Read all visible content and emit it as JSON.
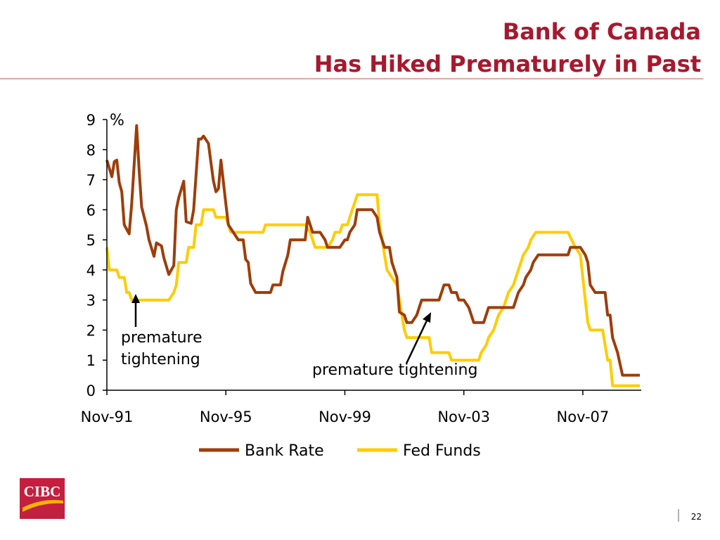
{
  "title_lines": [
    "Bank of Canada",
    "Has Hiked Prematurely in Past"
  ],
  "logo": "CIBC",
  "page_number": "22",
  "chart_data": {
    "type": "line",
    "y_label": "%",
    "xlim": [
      "1991-11",
      "2009-10"
    ],
    "xticks": [
      {
        "value": "1991-11",
        "label": "Nov-91"
      },
      {
        "value": "1995-11",
        "label": "Nov-95"
      },
      {
        "value": "1999-11",
        "label": "Nov-99"
      },
      {
        "value": "2003-11",
        "label": "Nov-03"
      },
      {
        "value": "2007-11",
        "label": "Nov-07"
      }
    ],
    "ylim": [
      0,
      9
    ],
    "yticks": [
      0,
      1,
      2,
      3,
      4,
      5,
      6,
      7,
      8,
      9
    ],
    "legend": "bottom",
    "annotations": [
      {
        "lines": [
          "premature",
          "tightening"
        ]
      },
      {
        "lines": [
          "premature tightening"
        ]
      }
    ],
    "series": [
      {
        "name": "Bank Rate",
        "color": "#9e3d0a",
        "x": [
          "1991-11",
          "1992-01",
          "1992-02",
          "1992-03",
          "1992-04",
          "1992-05",
          "1992-06",
          "1992-08",
          "1992-09",
          "1992-11",
          "1992-12",
          "1993-01",
          "1993-03",
          "1993-04",
          "1993-06",
          "1993-07",
          "1993-09",
          "1993-10",
          "1993-12",
          "1994-02",
          "1994-03",
          "1994-04",
          "1994-06",
          "1994-07",
          "1994-09",
          "1994-10",
          "1994-12",
          "1995-01",
          "1995-02",
          "1995-04",
          "1995-05",
          "1995-06",
          "1995-07",
          "1995-08",
          "1995-09",
          "1995-11",
          "1995-12",
          "1996-02",
          "1996-04",
          "1996-06",
          "1996-07",
          "1996-08",
          "1996-09",
          "1996-11",
          "1997-05",
          "1997-06",
          "1997-09",
          "1997-10",
          "1997-12",
          "1998-01",
          "1998-07",
          "1998-08",
          "1998-10",
          "1999-01",
          "1999-03",
          "1999-04",
          "1999-09",
          "1999-11",
          "1999-12",
          "2000-01",
          "2000-03",
          "2000-04",
          "2000-10",
          "2000-12",
          "2001-01",
          "2001-03",
          "2001-05",
          "2001-06",
          "2001-08",
          "2001-09",
          "2001-11",
          "2001-12",
          "2002-02",
          "2002-04",
          "2002-05",
          "2002-06",
          "2003-01",
          "2003-03",
          "2003-05",
          "2003-06",
          "2003-08",
          "2003-09",
          "2003-11",
          "2004-01",
          "2004-02",
          "2004-03",
          "2004-07",
          "2004-09",
          "2005-07",
          "2005-09",
          "2005-11",
          "2005-12",
          "2006-02",
          "2006-03",
          "2006-05",
          "2007-05",
          "2007-06",
          "2007-10",
          "2007-12",
          "2008-01",
          "2008-02",
          "2008-04",
          "2008-08",
          "2008-09",
          "2008-10",
          "2008-11",
          "2009-01",
          "2009-03",
          "2009-10"
        ],
        "values": [
          7.65,
          7.1,
          7.6,
          7.65,
          6.9,
          6.6,
          5.5,
          5.2,
          6.2,
          8.8,
          7.35,
          6.1,
          5.45,
          5.0,
          4.45,
          4.9,
          4.8,
          4.4,
          3.85,
          4.15,
          6.0,
          6.4,
          6.95,
          5.6,
          5.55,
          6.0,
          8.35,
          8.35,
          8.45,
          8.2,
          7.55,
          6.95,
          6.6,
          6.7,
          7.65,
          6.2,
          5.5,
          5.25,
          5.0,
          5.0,
          4.35,
          4.25,
          3.55,
          3.25,
          3.25,
          3.5,
          3.5,
          3.95,
          4.5,
          5.0,
          5.0,
          5.75,
          5.25,
          5.25,
          5.0,
          4.75,
          4.75,
          5.0,
          5.0,
          5.25,
          5.5,
          6.0,
          6.0,
          5.75,
          5.25,
          4.75,
          4.75,
          4.25,
          3.75,
          2.6,
          2.5,
          2.25,
          2.25,
          2.5,
          2.75,
          3.0,
          3.0,
          3.5,
          3.5,
          3.25,
          3.25,
          3.0,
          3.0,
          2.75,
          2.5,
          2.25,
          2.25,
          2.75,
          2.75,
          3.25,
          3.5,
          3.75,
          4.0,
          4.25,
          4.5,
          4.5,
          4.75,
          4.75,
          4.5,
          4.25,
          3.5,
          3.25,
          3.25,
          2.5,
          2.5,
          1.75,
          1.25,
          0.5,
          0.5
        ]
      },
      {
        "name": "Fed Funds",
        "color": "#ffcc00",
        "x": [
          "1991-11",
          "1991-12",
          "1992-03",
          "1992-04",
          "1992-06",
          "1992-07",
          "1992-08",
          "1992-09",
          "1993-12",
          "1994-02",
          "1994-03",
          "1994-04",
          "1994-07",
          "1994-08",
          "1994-10",
          "1994-11",
          "1995-01",
          "1995-02",
          "1995-06",
          "1995-07",
          "1995-11",
          "1995-12",
          "1996-01",
          "1997-02",
          "1997-03",
          "1998-07",
          "1998-09",
          "1998-10",
          "1998-11",
          "1999-04",
          "1999-06",
          "1999-07",
          "1999-09",
          "1999-10",
          "1999-12",
          "2000-01",
          "2000-02",
          "2000-03",
          "2000-04",
          "2000-12",
          "2001-01",
          "2001-02",
          "2001-03",
          "2001-04",
          "2001-06",
          "2001-08",
          "2001-09",
          "2001-10",
          "2001-11",
          "2001-12",
          "2002-09",
          "2002-10",
          "2003-05",
          "2003-06",
          "2004-05",
          "2004-06",
          "2004-08",
          "2004-09",
          "2004-11",
          "2004-12",
          "2005-01",
          "2005-03",
          "2005-04",
          "2005-05",
          "2005-07",
          "2005-08",
          "2005-09",
          "2005-10",
          "2005-11",
          "2006-01",
          "2006-02",
          "2006-04",
          "2007-05",
          "2007-08",
          "2007-10",
          "2007-12",
          "2008-01",
          "2008-02",
          "2008-07",
          "2008-08",
          "2008-09",
          "2008-10",
          "2008-11",
          "2009-10"
        ],
        "values": [
          4.75,
          4.0,
          4.0,
          3.75,
          3.75,
          3.25,
          3.25,
          3.0,
          3.0,
          3.25,
          3.5,
          4.25,
          4.25,
          4.75,
          4.75,
          5.5,
          5.5,
          6.0,
          6.0,
          5.75,
          5.75,
          5.5,
          5.25,
          5.25,
          5.5,
          5.5,
          5.25,
          5.0,
          4.75,
          4.75,
          5.0,
          5.25,
          5.25,
          5.5,
          5.5,
          5.75,
          6.0,
          6.25,
          6.5,
          6.5,
          5.5,
          5.0,
          4.5,
          4.0,
          3.75,
          3.5,
          3.0,
          2.5,
          2.0,
          1.75,
          1.75,
          1.25,
          1.25,
          1.0,
          1.0,
          1.25,
          1.5,
          1.75,
          2.0,
          2.25,
          2.5,
          2.75,
          3.0,
          3.25,
          3.5,
          3.75,
          4.0,
          4.25,
          4.5,
          4.75,
          5.0,
          5.25,
          5.25,
          4.75,
          4.5,
          3.0,
          2.25,
          2.0,
          2.0,
          1.5,
          1.0,
          1.0,
          0.15,
          0.15
        ]
      }
    ]
  }
}
